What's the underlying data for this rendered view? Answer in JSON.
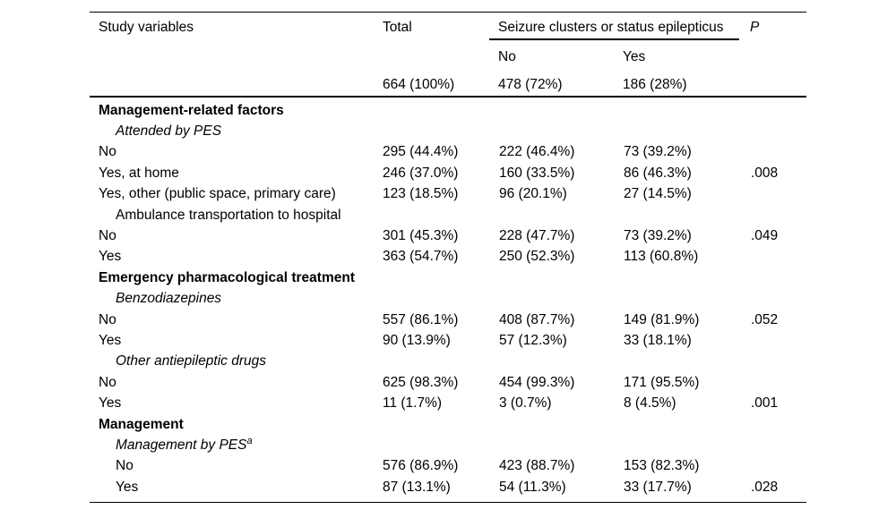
{
  "table": {
    "headers": {
      "study_variables": "Study variables",
      "total": "Total",
      "group": "Seizure clusters or status epilepticus",
      "p": "P"
    },
    "subheaders": {
      "no": "No",
      "yes": "Yes"
    },
    "counts": {
      "total": "664 (100%)",
      "no": "478 (72%)",
      "yes": "186 (28%)"
    },
    "rows": [
      {
        "label": "Management-related factors",
        "style": "bold"
      },
      {
        "label": "Attended by PES",
        "style": "italic-indent"
      },
      {
        "label": "No",
        "style": "normal",
        "total": "295 (44.4%)",
        "no": "222 (46.4%)",
        "yes": "73 (39.2%)"
      },
      {
        "label": "Yes, at home",
        "style": "normal",
        "total": "246 (37.0%)",
        "no": "160 (33.5%)",
        "yes": "86 (46.3%)",
        "p": ".008"
      },
      {
        "label": "Yes, other (public space, primary care)",
        "style": "normal",
        "total": "123 (18.5%)",
        "no": "96 (20.1%)",
        "yes": "27 (14.5%)"
      },
      {
        "label": "Ambulance transportation to hospital",
        "style": "indent"
      },
      {
        "label": "No",
        "style": "normal",
        "total": "301 (45.3%)",
        "no": "228 (47.7%)",
        "yes": "73 (39.2%)",
        "p": ".049"
      },
      {
        "label": "Yes",
        "style": "normal",
        "total": "363 (54.7%)",
        "no": "250 (52.3%)",
        "yes": "113 (60.8%)"
      },
      {
        "label": "Emergency pharmacological treatment",
        "style": "bold"
      },
      {
        "label": "Benzodiazepines",
        "style": "italic-indent"
      },
      {
        "label": "No",
        "style": "normal",
        "total": "557 (86.1%)",
        "no": "408 (87.7%)",
        "yes": "149 (81.9%)",
        "p": ".052"
      },
      {
        "label": "Yes",
        "style": "normal",
        "total": "90 (13.9%)",
        "no": "57 (12.3%)",
        "yes": "33 (18.1%)"
      },
      {
        "label": "Other antiepileptic drugs",
        "style": "italic-indent"
      },
      {
        "label": "No",
        "style": "normal",
        "total": "625 (98.3%)",
        "no": "454 (99.3%)",
        "yes": "171 (95.5%)"
      },
      {
        "label": "Yes",
        "style": "normal",
        "total": "11 (1.7%)",
        "no": "3 (0.7%)",
        "yes": "8 (4.5%)",
        "p": ".001"
      },
      {
        "label": "Management",
        "style": "bold"
      },
      {
        "label": "Management by PES",
        "sup": "a",
        "style": "italic-indent"
      },
      {
        "label": "No",
        "style": "indent-data",
        "total": "576 (86.9%)",
        "no": "423 (88.7%)",
        "yes": "153 (82.3%)"
      },
      {
        "label": "Yes",
        "style": "indent-data",
        "total": "87 (13.1%)",
        "no": "54 (11.3%)",
        "yes": "33 (17.7%)",
        "p": ".028"
      }
    ]
  }
}
